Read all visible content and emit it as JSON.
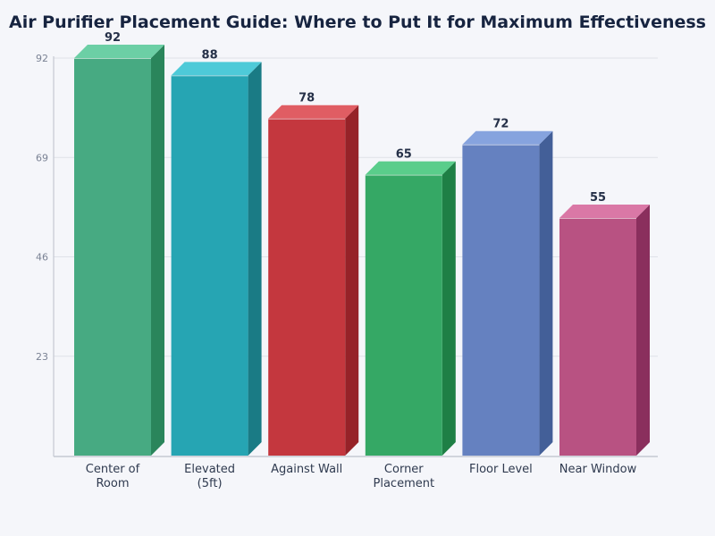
{
  "chart_data": {
    "type": "bar",
    "title": "Air Purifier Placement Guide: Where to Put It for Maximum Effectiveness",
    "xlabel": "",
    "ylabel": "",
    "categories": [
      "Center of Room",
      "Elevated (5ft)",
      "Against Wall",
      "Corner Placement",
      "Floor Level",
      "Near Window"
    ],
    "category_lines": [
      [
        "Center of",
        "Room"
      ],
      [
        "Elevated",
        "(5ft)"
      ],
      [
        "Against Wall"
      ],
      [
        "Corner",
        "Placement"
      ],
      [
        "Floor Level"
      ],
      [
        "Near Window"
      ]
    ],
    "values": [
      92,
      88,
      78,
      65,
      72,
      55
    ],
    "ylim": [
      0,
      92
    ],
    "yticks": [
      23,
      46,
      69,
      92
    ],
    "grid": true,
    "legend": "none",
    "style": "3d-bars",
    "colors": [
      {
        "front": "#47aa82",
        "top": "#6ccfa5",
        "side": "#2a855b"
      },
      {
        "front": "#26a5b3",
        "top": "#4ecad8",
        "side": "#1a7b85"
      },
      {
        "front": "#c4373e",
        "top": "#e05d63",
        "side": "#962228"
      },
      {
        "front": "#35a865",
        "top": "#5acd8b",
        "side": "#1e7f45"
      },
      {
        "front": "#6581c0",
        "top": "#86a3de",
        "side": "#435f98"
      },
      {
        "front": "#b85282",
        "top": "#da78a6",
        "side": "#8a2f5d"
      }
    ]
  },
  "colors": {
    "title": "#172440",
    "value_label": "#253048",
    "tick_label": "#7a8294",
    "category_label": "#2f3a4f",
    "grid": "#dfe2e8",
    "axis": "#c5c9d2",
    "background": "#f5f6fa"
  }
}
